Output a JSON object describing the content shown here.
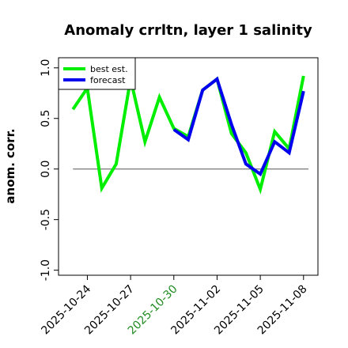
{
  "chart_data": {
    "type": "line",
    "title": "Anomaly crrltn, layer 1 salinity",
    "ylabel": "anom. corr.",
    "xlabel": "",
    "ylim": [
      -1.05,
      1.1
    ],
    "xlim": [
      "2025-10-22",
      "2025-11-09"
    ],
    "yticks": [
      {
        "value": 1.0,
        "label": "1.0"
      },
      {
        "value": 0.5,
        "label": "0.5"
      },
      {
        "value": 0.0,
        "label": "0.0"
      },
      {
        "value": -0.5,
        "label": "-0.5"
      },
      {
        "value": -1.0,
        "label": "-1.0"
      }
    ],
    "xticks": [
      {
        "value": "2025-10-24",
        "label": "2025-10-24",
        "color": "#000000"
      },
      {
        "value": "2025-10-27",
        "label": "2025-10-27",
        "color": "#000000"
      },
      {
        "value": "2025-10-30",
        "label": "2025-10-30",
        "color": "#228B22"
      },
      {
        "value": "2025-11-02",
        "label": "2025-11-02",
        "color": "#000000"
      },
      {
        "value": "2025-11-05",
        "label": "2025-11-05",
        "color": "#000000"
      },
      {
        "value": "2025-11-08",
        "label": "2025-11-08",
        "color": "#000000"
      }
    ],
    "reference_line": 0.0,
    "legend": "top-left",
    "grid": false,
    "series": [
      {
        "name": "best est.",
        "color": "#00ee00",
        "points": [
          {
            "x": "2025-10-23",
            "y": 0.59
          },
          {
            "x": "2025-10-24",
            "y": 0.8
          },
          {
            "x": "2025-10-25",
            "y": -0.19
          },
          {
            "x": "2025-10-26",
            "y": 0.05
          },
          {
            "x": "2025-10-27",
            "y": 0.89
          },
          {
            "x": "2025-10-28",
            "y": 0.27
          },
          {
            "x": "2025-10-29",
            "y": 0.71
          },
          {
            "x": "2025-10-30",
            "y": 0.4
          },
          {
            "x": "2025-10-31",
            "y": 0.32
          },
          {
            "x": "2025-11-01",
            "y": 0.78
          },
          {
            "x": "2025-11-02",
            "y": 0.89
          },
          {
            "x": "2025-11-03",
            "y": 0.35
          },
          {
            "x": "2025-11-04",
            "y": 0.16
          },
          {
            "x": "2025-11-05",
            "y": -0.2
          },
          {
            "x": "2025-11-06",
            "y": 0.37
          },
          {
            "x": "2025-11-07",
            "y": 0.2
          },
          {
            "x": "2025-11-08",
            "y": 0.92
          }
        ]
      },
      {
        "name": "forecast",
        "color": "#0000ee",
        "points": [
          {
            "x": "2025-10-30",
            "y": 0.39
          },
          {
            "x": "2025-10-31",
            "y": 0.29
          },
          {
            "x": "2025-11-01",
            "y": 0.78
          },
          {
            "x": "2025-11-02",
            "y": 0.89
          },
          {
            "x": "2025-11-03",
            "y": 0.44
          },
          {
            "x": "2025-11-04",
            "y": 0.05
          },
          {
            "x": "2025-11-05",
            "y": -0.05
          },
          {
            "x": "2025-11-06",
            "y": 0.27
          },
          {
            "x": "2025-11-07",
            "y": 0.16
          },
          {
            "x": "2025-11-08",
            "y": 0.77
          }
        ]
      }
    ]
  }
}
